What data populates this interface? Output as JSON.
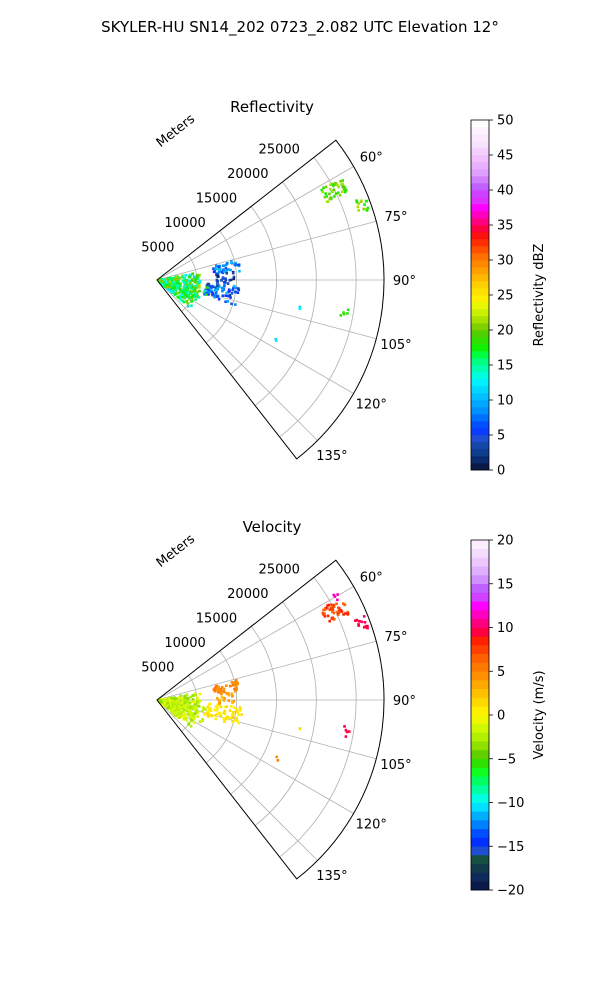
{
  "figure_title": "SKYLER-HU  SN14_202  0723_2.082 UTC Elevation 12°",
  "chart_data": [
    {
      "type": "polar-sector",
      "title": "Reflectivity",
      "range_label": "Meters",
      "theta_min_deg": 52,
      "theta_max_deg": 142,
      "r_max": 28500,
      "r_ticks": [
        5000,
        10000,
        15000,
        20000,
        25000
      ],
      "r_tick_labels": [
        "5000",
        "10000",
        "15000",
        "20000",
        "25000"
      ],
      "theta_ticks_deg": [
        60,
        75,
        90,
        105,
        120,
        135
      ],
      "theta_tick_labels": [
        "60°",
        "75°",
        "90°",
        "105°",
        "120°",
        "135°"
      ],
      "grid": true,
      "colorbar": {
        "label": "Reflectivity dBZ",
        "min": 0,
        "max": 50,
        "ticks": [
          0,
          5,
          10,
          15,
          20,
          25,
          30,
          35,
          40,
          45,
          50
        ],
        "tick_labels": [
          "0",
          "5",
          "10",
          "15",
          "20",
          "25",
          "30",
          "35",
          "40",
          "45",
          "50"
        ],
        "colors": [
          "#0a1a4a",
          "#0a2a6e",
          "#0e3d8c",
          "#1446a8",
          "#1e4fd0",
          "#0a3bff",
          "#0050ff",
          "#0070ff",
          "#0090ff",
          "#00a8ff",
          "#00c0ff",
          "#00d8ff",
          "#00f0ff",
          "#00ffe0",
          "#00ffb0",
          "#00ff80",
          "#00ff40",
          "#10f000",
          "#30e000",
          "#50d000",
          "#80d000",
          "#a8e000",
          "#c8f000",
          "#e8f800",
          "#fff000",
          "#ffe000",
          "#ffd000",
          "#ffb800",
          "#ffa000",
          "#ff8800",
          "#ff7000",
          "#ff5000",
          "#ff3000",
          "#ff1010",
          "#ff0040",
          "#ff0080",
          "#ff00c0",
          "#ff00ff",
          "#e030ff",
          "#d040ff",
          "#c060ff",
          "#d080ff",
          "#e0a0ff",
          "#e8b0ff",
          "#f0c0ff",
          "#f4d0ff",
          "#f8e0ff",
          "#fbeaff",
          "#fdf2ff",
          "#ffffff"
        ]
      },
      "clusters": [
        {
          "theta": [
            80,
            130
          ],
          "r": [
            300,
            5500
          ],
          "value": [
            11,
            22
          ],
          "density": 300
        },
        {
          "theta": [
            76,
            84
          ],
          "r": [
            7200,
            10500
          ],
          "value": [
            4,
            11
          ],
          "density": 40
        },
        {
          "theta": [
            94,
            108
          ],
          "r": [
            6200,
            10800
          ],
          "value": [
            3,
            11
          ],
          "density": 70
        },
        {
          "theta": [
            84,
            94
          ],
          "r": [
            7500,
            9800
          ],
          "value": [
            1,
            6
          ],
          "density": 25
        },
        {
          "theta": [
            98,
            118
          ],
          "r": [
            2000,
            6500
          ],
          "value": [
            14,
            20
          ],
          "density": 50
        },
        {
          "theta": [
            61,
            66
          ],
          "r": [
            23500,
            26500
          ],
          "value": [
            17,
            22
          ],
          "density": 45
        },
        {
          "theta": [
            68,
            72
          ],
          "r": [
            26800,
            28200
          ],
          "value": [
            17,
            22
          ],
          "density": 14
        },
        {
          "theta": [
            98,
            101
          ],
          "r": [
            23500,
            24500
          ],
          "value": [
            17,
            20
          ],
          "density": 5
        },
        {
          "theta": [
            100.5,
            102
          ],
          "r": [
            18000,
            18400
          ],
          "value": [
            11,
            13
          ],
          "density": 2
        },
        {
          "theta": [
            115,
            117
          ],
          "r": [
            16500,
            17000
          ],
          "value": [
            11,
            13
          ],
          "density": 2
        }
      ]
    },
    {
      "type": "polar-sector",
      "title": "Velocity",
      "range_label": "Meters",
      "theta_min_deg": 52,
      "theta_max_deg": 142,
      "r_max": 28500,
      "r_ticks": [
        5000,
        10000,
        15000,
        20000,
        25000
      ],
      "r_tick_labels": [
        "5000",
        "10000",
        "15000",
        "20000",
        "25000"
      ],
      "theta_ticks_deg": [
        60,
        75,
        90,
        105,
        120,
        135
      ],
      "theta_tick_labels": [
        "60°",
        "75°",
        "90°",
        "105°",
        "120°",
        "135°"
      ],
      "grid": true,
      "colorbar": {
        "label": "Velocity (m/s)",
        "min": -20,
        "max": 20,
        "ticks": [
          -20,
          -15,
          -10,
          -5,
          0,
          5,
          10,
          15,
          20
        ],
        "tick_labels": [
          "−20",
          "−15",
          "−10",
          "−5",
          "0",
          "5",
          "10",
          "15",
          "20"
        ],
        "colors": [
          "#0a1a4a",
          "#0e2a5a",
          "#113a4a",
          "#155040",
          "#1e4fd0",
          "#0030ff",
          "#0050ff",
          "#0080ff",
          "#00b0ff",
          "#00e0ff",
          "#00ffe0",
          "#00ffa0",
          "#00ff60",
          "#10ff20",
          "#30e000",
          "#60d000",
          "#90e000",
          "#b0f000",
          "#d0f800",
          "#f0f800",
          "#fff000",
          "#ffd800",
          "#ffc000",
          "#ffa800",
          "#ff9000",
          "#ff7800",
          "#ff6000",
          "#ff4000",
          "#ff2000",
          "#ff0040",
          "#ff0080",
          "#ff00c0",
          "#ff00ff",
          "#d040ff",
          "#c060ff",
          "#d090ff",
          "#e0b0ff",
          "#ecc8ff",
          "#f4dcff",
          "#fbeeff"
        ]
      },
      "clusters": [
        {
          "theta": [
            80,
            130
          ],
          "r": [
            300,
            5500
          ],
          "value": [
            -4,
            0
          ],
          "density": 280
        },
        {
          "theta": [
            76,
            84
          ],
          "r": [
            7200,
            10500
          ],
          "value": [
            4,
            6
          ],
          "density": 40
        },
        {
          "theta": [
            94,
            108
          ],
          "r": [
            6200,
            10800
          ],
          "value": [
            0,
            2
          ],
          "density": 70
        },
        {
          "theta": [
            84,
            94
          ],
          "r": [
            7500,
            9800
          ],
          "value": [
            2,
            5
          ],
          "density": 20
        },
        {
          "theta": [
            98,
            118
          ],
          "r": [
            2000,
            6500
          ],
          "value": [
            -3,
            -1
          ],
          "density": 40
        },
        {
          "theta": [
            61,
            66
          ],
          "r": [
            23500,
            26500
          ],
          "value": [
            6,
            9
          ],
          "density": 45
        },
        {
          "theta": [
            59,
            61
          ],
          "r": [
            25800,
            26400
          ],
          "value": [
            11,
            12
          ],
          "density": 4
        },
        {
          "theta": [
            68,
            72
          ],
          "r": [
            26800,
            28200
          ],
          "value": [
            9,
            11
          ],
          "density": 14
        },
        {
          "theta": [
            98,
            101
          ],
          "r": [
            23500,
            24500
          ],
          "value": [
            9,
            10
          ],
          "density": 5
        },
        {
          "theta": [
            100.5,
            102
          ],
          "r": [
            18000,
            18400
          ],
          "value": [
            1,
            3
          ],
          "density": 2
        },
        {
          "theta": [
            115,
            117
          ],
          "r": [
            16500,
            17000
          ],
          "value": [
            4,
            6
          ],
          "density": 2
        }
      ]
    }
  ]
}
